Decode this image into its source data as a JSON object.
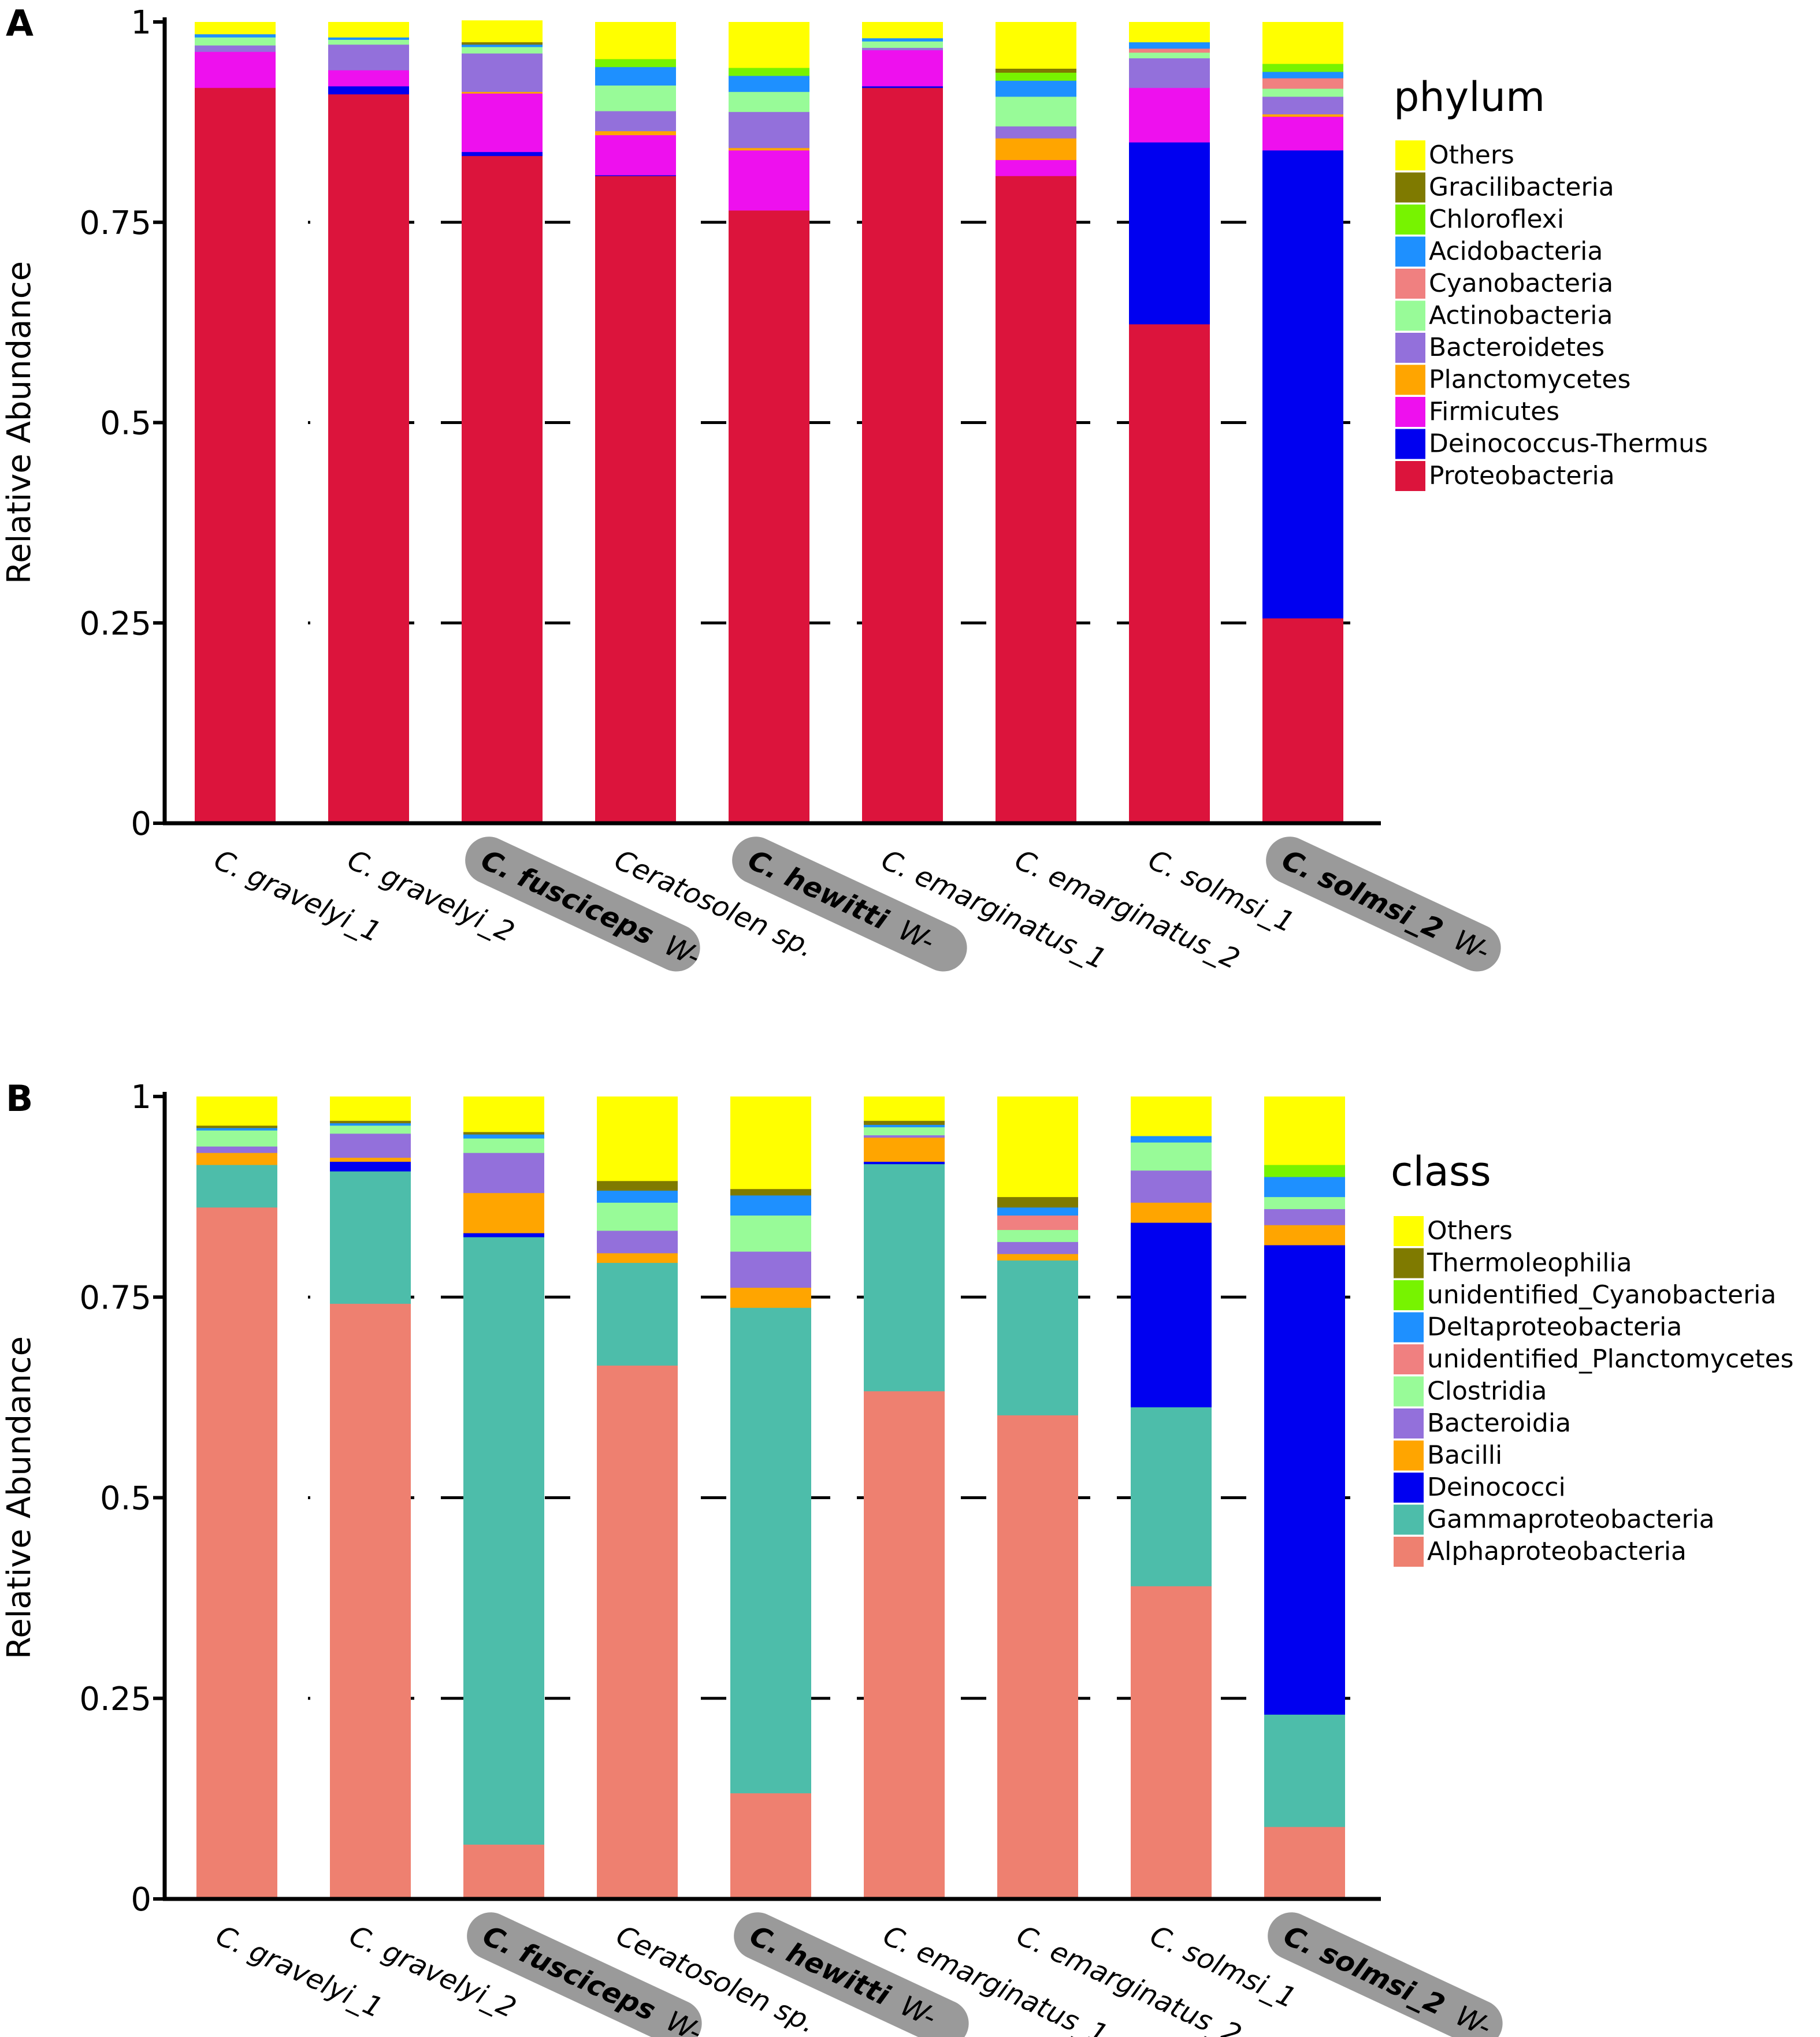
{
  "colors": {
    "phylum": {
      "Others": "#FFFF00",
      "Gracilibacteria": "#7F7A00",
      "Chloroflexi": "#77F300",
      "Acidobacteria": "#1E90FF",
      "Cyanobacteria": "#F08080",
      "Actinobacteria": "#98FB98",
      "Bacteroidetes": "#9370DB",
      "Planctomycetes": "#FFA500",
      "Firmicutes": "#EE10EE",
      "Deinococcus-Thermus": "#0000F0",
      "Proteobacteria": "#DC143C"
    },
    "class": {
      "Others": "#FFFF00",
      "Thermoleophilia": "#7F7A00",
      "unidentified_Cyanobacteria": "#77F300",
      "Deltaproteobacteria": "#1E90FF",
      "unidentified_Planctomycetes": "#F08080",
      "Clostridia": "#98FB98",
      "Bacteroidia": "#9370DB",
      "Bacilli": "#FFA500",
      "Deinococci": "#0000F0",
      "Gammaproteobacteria": "#4DBDAA",
      "Alphaproteobacteria": "#EE8070"
    },
    "highlight": "#9A9A9A"
  },
  "samples": [
    {
      "name": "C. gravelyi_1",
      "highlight": false,
      "suffix": ""
    },
    {
      "name": "C. gravelyi_2",
      "highlight": false,
      "suffix": ""
    },
    {
      "name": "C. fusciceps",
      "highlight": true,
      "suffix": "W-"
    },
    {
      "name": "Ceratosolen sp.",
      "highlight": false,
      "suffix": ""
    },
    {
      "name": "C. hewitti",
      "highlight": true,
      "suffix": "W-"
    },
    {
      "name": "C. emarginatus_1",
      "highlight": false,
      "suffix": ""
    },
    {
      "name": "C. emarginatus_2",
      "highlight": false,
      "suffix": ""
    },
    {
      "name": "C. solmsi_1",
      "highlight": false,
      "suffix": ""
    },
    {
      "name": "C. solmsi_2",
      "highlight": true,
      "suffix": "W-"
    }
  ],
  "chart_data": [
    {
      "type": "bar",
      "stacked": true,
      "panel": "A",
      "ylabel": "Relative Abundance",
      "ylim": [
        0,
        1
      ],
      "yticks": [
        0,
        0.25,
        0.5,
        0.75,
        1
      ],
      "ytick_labels": [
        "0",
        "0.25",
        "0.5",
        "0.75",
        "1"
      ],
      "grid": "dashed at 0.25, 0.5, 0.75",
      "legend_title": "phylum",
      "legend_position": "right",
      "legend_order": [
        "Others",
        "Gracilibacteria",
        "Chloroflexi",
        "Acidobacteria",
        "Cyanobacteria",
        "Actinobacteria",
        "Bacteroidetes",
        "Planctomycetes",
        "Firmicutes",
        "Deinococcus-Thermus",
        "Proteobacteria"
      ],
      "categories": [
        "C. gravelyi_1",
        "C. gravelyi_2",
        "C. fusciceps",
        "Ceratosolen sp.",
        "C. hewitti",
        "C. emarginatus_1",
        "C. emarginatus_2",
        "C. solmsi_1",
        "C. solmsi_2"
      ],
      "series": [
        {
          "name": "Proteobacteria",
          "values": [
            0.918,
            0.91,
            0.833,
            0.808,
            0.765,
            0.918,
            0.808,
            0.623,
            0.256
          ]
        },
        {
          "name": "Deinococcus-Thermus",
          "values": [
            0.0,
            0.01,
            0.005,
            0.001,
            0.0,
            0.002,
            0.0,
            0.227,
            0.584
          ]
        },
        {
          "name": "Firmicutes",
          "values": [
            0.045,
            0.02,
            0.073,
            0.05,
            0.075,
            0.045,
            0.02,
            0.068,
            0.042
          ]
        },
        {
          "name": "Planctomycetes",
          "values": [
            0.0,
            0.0,
            0.002,
            0.005,
            0.003,
            0.0,
            0.027,
            0.0,
            0.003
          ]
        },
        {
          "name": "Bacteroidetes",
          "values": [
            0.008,
            0.032,
            0.048,
            0.025,
            0.045,
            0.003,
            0.015,
            0.037,
            0.022
          ]
        },
        {
          "name": "Actinobacteria",
          "values": [
            0.01,
            0.006,
            0.008,
            0.032,
            0.025,
            0.008,
            0.037,
            0.007,
            0.01
          ]
        },
        {
          "name": "Cyanobacteria",
          "values": [
            0.0,
            0.0,
            0.0,
            0.0,
            0.0,
            0.0,
            0.0,
            0.005,
            0.013
          ]
        },
        {
          "name": "Acidobacteria",
          "values": [
            0.004,
            0.003,
            0.003,
            0.023,
            0.02,
            0.004,
            0.02,
            0.008,
            0.008
          ]
        },
        {
          "name": "Chloroflexi",
          "values": [
            0.0,
            0.0,
            0.0,
            0.01,
            0.01,
            0.0,
            0.01,
            0.0,
            0.01
          ]
        },
        {
          "name": "Gracilibacteria",
          "values": [
            0.0,
            0.0,
            0.003,
            0.0,
            0.0,
            0.0,
            0.005,
            0.0,
            0.0
          ]
        },
        {
          "name": "Others",
          "values": [
            0.015,
            0.019,
            0.027,
            0.046,
            0.057,
            0.02,
            0.058,
            0.025,
            0.052
          ]
        }
      ]
    },
    {
      "type": "bar",
      "stacked": true,
      "panel": "B",
      "ylabel": "Relative Abundance",
      "ylim": [
        0,
        1
      ],
      "yticks": [
        0,
        0.25,
        0.5,
        0.75,
        1
      ],
      "ytick_labels": [
        "0",
        "0.25",
        "0.5",
        "0.75",
        "1"
      ],
      "grid": "dashed at 0.25, 0.5, 0.75",
      "legend_title": "class",
      "legend_position": "right",
      "legend_order": [
        "Others",
        "Thermoleophilia",
        "unidentified_Cyanobacteria",
        "Deltaproteobacteria",
        "unidentified_Planctomycetes",
        "Clostridia",
        "Bacteroidia",
        "Bacilli",
        "Deinococci",
        "Gammaproteobacteria",
        "Alphaproteobacteria"
      ],
      "categories": [
        "C. gravelyi_1",
        "C. gravelyi_2",
        "C. fusciceps",
        "Ceratosolen sp.",
        "C. hewitti",
        "C. emarginatus_1",
        "C. emarginatus_2",
        "C. solmsi_1",
        "C. solmsi_2"
      ],
      "series": [
        {
          "name": "Alphaproteobacteria",
          "values": [
            0.862,
            0.742,
            0.068,
            0.665,
            0.132,
            0.633,
            0.603,
            0.39,
            0.09
          ]
        },
        {
          "name": "Gammaproteobacteria",
          "values": [
            0.053,
            0.165,
            0.757,
            0.128,
            0.605,
            0.283,
            0.193,
            0.223,
            0.14
          ]
        },
        {
          "name": "Deinococci",
          "values": [
            0.0,
            0.012,
            0.005,
            0.0,
            0.0,
            0.003,
            0.0,
            0.23,
            0.585
          ]
        },
        {
          "name": "Bacilli",
          "values": [
            0.015,
            0.005,
            0.05,
            0.012,
            0.025,
            0.03,
            0.008,
            0.025,
            0.025
          ]
        },
        {
          "name": "Bacteroidia",
          "values": [
            0.008,
            0.03,
            0.05,
            0.028,
            0.045,
            0.003,
            0.015,
            0.04,
            0.02
          ]
        },
        {
          "name": "Clostridia",
          "values": [
            0.02,
            0.01,
            0.018,
            0.035,
            0.045,
            0.01,
            0.015,
            0.035,
            0.015
          ]
        },
        {
          "name": "unidentified_Planctomycetes",
          "values": [
            0.0,
            0.0,
            0.0,
            0.0,
            0.0,
            0.0,
            0.018,
            0.0,
            0.0
          ]
        },
        {
          "name": "Deltaproteobacteria",
          "values": [
            0.003,
            0.003,
            0.005,
            0.015,
            0.025,
            0.003,
            0.01,
            0.008,
            0.025
          ]
        },
        {
          "name": "unidentified_Cyanobacteria",
          "values": [
            0.0,
            0.0,
            0.0,
            0.0,
            0.0,
            0.0,
            0.0,
            0.0,
            0.015
          ]
        },
        {
          "name": "Thermoleophilia",
          "values": [
            0.003,
            0.003,
            0.003,
            0.012,
            0.008,
            0.005,
            0.013,
            0.0,
            0.0
          ]
        },
        {
          "name": "Others",
          "values": [
            0.036,
            0.03,
            0.044,
            0.105,
            0.115,
            0.03,
            0.125,
            0.049,
            0.085
          ]
        }
      ]
    }
  ]
}
